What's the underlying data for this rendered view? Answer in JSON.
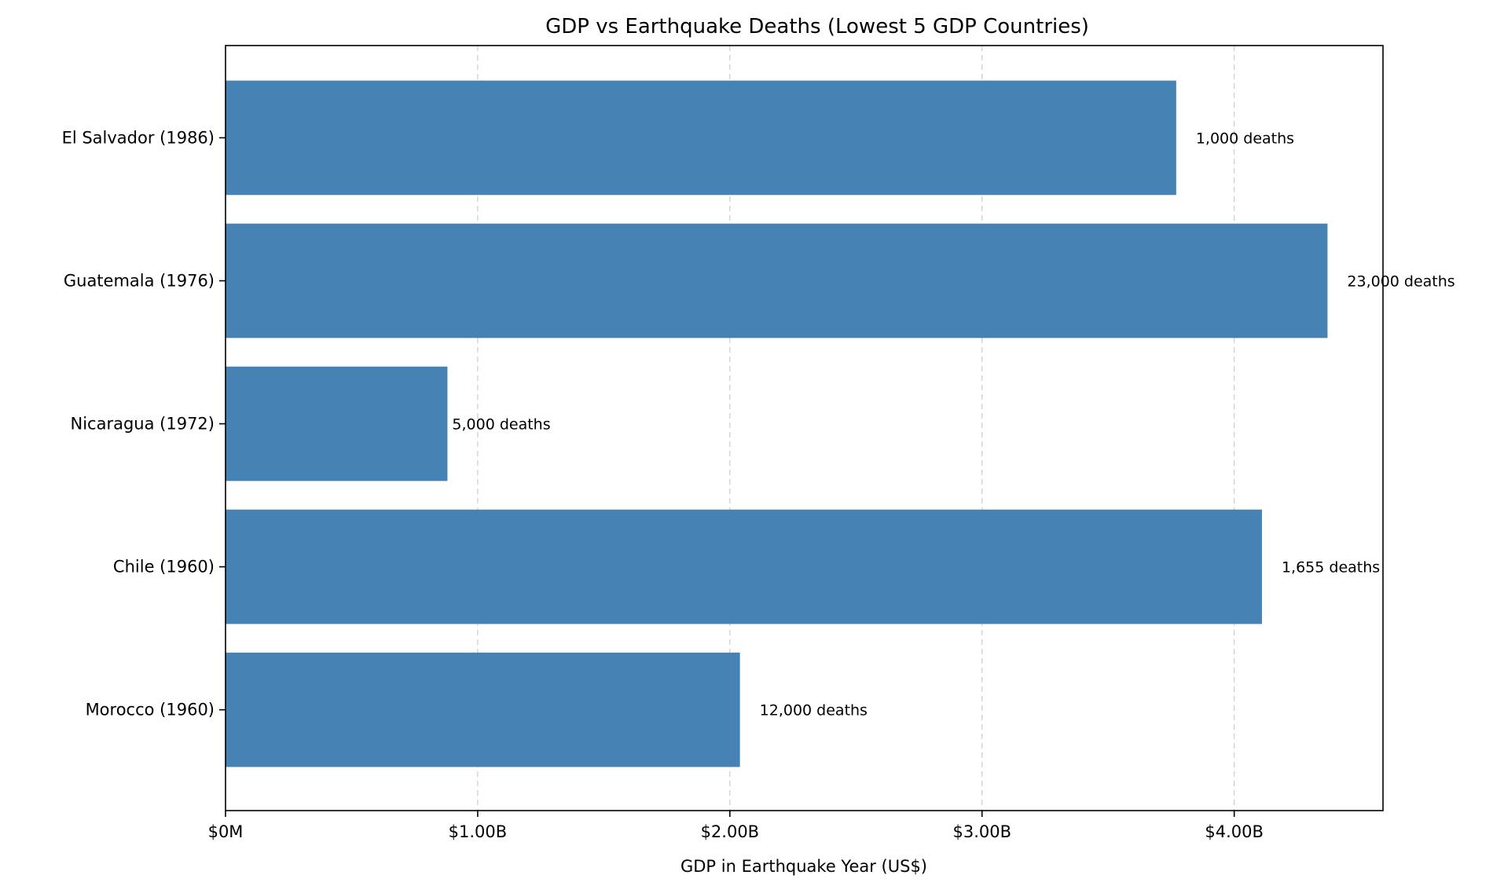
{
  "chart_data": {
    "type": "bar",
    "orientation": "horizontal",
    "title": "GDP vs Earthquake Deaths (Lowest 5 GDP Countries)",
    "xlabel": "GDP in Earthquake Year (US$)",
    "ylabel": "",
    "xlim": [
      0,
      4590000000
    ],
    "x_ticks": [
      0,
      1000000000,
      2000000000,
      3000000000,
      4000000000
    ],
    "x_tick_labels": [
      "$0M",
      "$1.00B",
      "$2.00B",
      "$3.00B",
      "$4.00B"
    ],
    "grid": "x-dashed",
    "bar_color": "#4682b4",
    "categories": [
      "El Salvador (1986)",
      "Guatemala (1976)",
      "Nicaragua (1972)",
      "Chile (1960)",
      "Morocco (1960)"
    ],
    "values": [
      3770000000,
      4370000000,
      880000000,
      4110000000,
      2040000000
    ],
    "data_labels": [
      "1,000 deaths",
      "23,000 deaths",
      "5,000 deaths",
      "1,655 deaths",
      "12,000 deaths"
    ]
  }
}
